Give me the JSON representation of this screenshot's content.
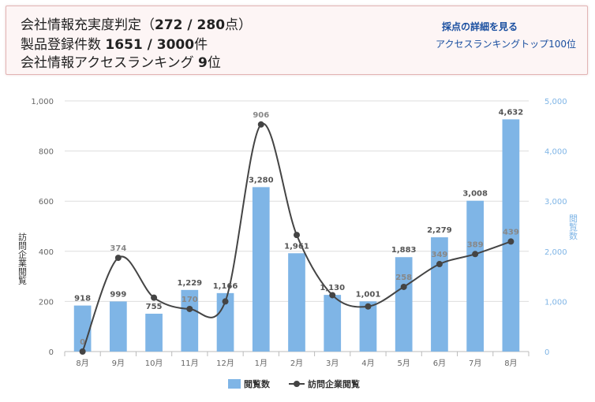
{
  "header": {
    "line1": {
      "prefix": "会社情報充実度判定（",
      "value": "272 / 280",
      "suffix": "点）"
    },
    "line2": {
      "prefix": "製品登録件数 ",
      "value": "1651 / 3000",
      "suffix": "件"
    },
    "line3": {
      "prefix": "会社情報アクセスランキング ",
      "value": "9",
      "suffix": "位"
    },
    "links": {
      "detail": "採点の詳細を見る",
      "ranking": "アクセスランキングトップ100位"
    }
  },
  "chart_data": {
    "type": "bar",
    "categories": [
      "8月",
      "9月",
      "10月",
      "11月",
      "12月",
      "1月",
      "2月",
      "3月",
      "4月",
      "5月",
      "6月",
      "7月",
      "8月"
    ],
    "series": [
      {
        "name": "閲覧数",
        "type": "bar",
        "axis": "right",
        "color": "#7fb5e6",
        "values": [
          918,
          999,
          755,
          1229,
          1166,
          3280,
          1961,
          1130,
          1001,
          1883,
          2279,
          3008,
          4632
        ]
      },
      {
        "name": "訪問企業閲覧",
        "type": "line",
        "axis": "left",
        "color": "#444444",
        "values": [
          0,
          374,
          215,
          170,
          200,
          906,
          465,
          225,
          180,
          258,
          349,
          389,
          439
        ]
      }
    ],
    "y_left": {
      "label": "訪問企業閲覧",
      "min": 0,
      "max": 1000,
      "ticks": [
        0,
        200,
        400,
        600,
        800,
        1000
      ]
    },
    "y_right": {
      "label": "閲覧数",
      "min": 0,
      "max": 5000,
      "ticks": [
        0,
        1000,
        2000,
        3000,
        4000,
        5000
      ]
    },
    "point_labels": [
      {
        "index": 0,
        "text": "0"
      },
      {
        "index": 1,
        "text": "374"
      },
      {
        "index": 3,
        "text": "170"
      },
      {
        "index": 5,
        "text": "906"
      },
      {
        "index": 9,
        "text": "258"
      },
      {
        "index": 10,
        "text": "349"
      },
      {
        "index": 11,
        "text": "389"
      },
      {
        "index": 12,
        "text": "439"
      }
    ],
    "grid": true,
    "legend_position": "bottom"
  }
}
